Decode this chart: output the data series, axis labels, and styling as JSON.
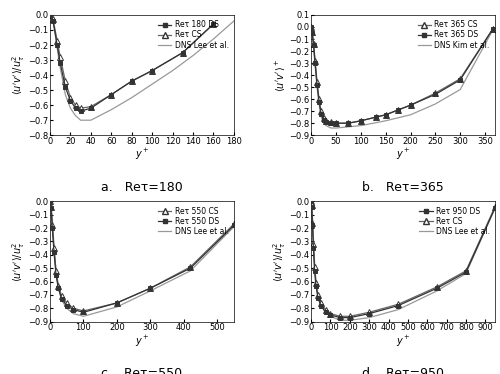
{
  "panels": [
    {
      "label": "a.",
      "Re": "180",
      "legend_order": [
        "DS",
        "CS",
        "DNS"
      ],
      "legend": [
        "Reτ 180 DS",
        "Reτ CS",
        "DNS Lee et al."
      ],
      "xlim": [
        0,
        180
      ],
      "ylim": [
        -0.8,
        0.0
      ],
      "yticks": [
        0,
        -0.1,
        -0.2,
        -0.3,
        -0.4,
        -0.5,
        -0.6,
        -0.7,
        -0.8
      ],
      "xticks": [
        0,
        20,
        40,
        60,
        80,
        100,
        120,
        140,
        160,
        180
      ],
      "ylabel_type": "uv_norm",
      "ds_x": [
        0,
        3,
        7,
        10,
        15,
        20,
        25,
        30,
        40,
        60,
        80,
        100,
        130,
        160
      ],
      "ds_y": [
        0.0,
        -0.04,
        -0.2,
        -0.32,
        -0.48,
        -0.57,
        -0.62,
        -0.64,
        -0.62,
        -0.53,
        -0.44,
        -0.37,
        -0.25,
        -0.06
      ],
      "cs_x": [
        0,
        3,
        7,
        10,
        15,
        20,
        25,
        30,
        40,
        60,
        80,
        100,
        130,
        160
      ],
      "cs_y": [
        0.0,
        -0.03,
        -0.17,
        -0.28,
        -0.44,
        -0.55,
        -0.6,
        -0.62,
        -0.61,
        -0.53,
        -0.44,
        -0.37,
        -0.25,
        -0.06
      ],
      "dns_x": [
        0,
        1,
        3,
        5,
        7,
        10,
        15,
        20,
        25,
        30,
        40,
        60,
        80,
        100,
        120,
        140,
        160,
        180
      ],
      "dns_y": [
        0.0,
        -0.01,
        -0.05,
        -0.12,
        -0.22,
        -0.35,
        -0.53,
        -0.62,
        -0.67,
        -0.7,
        -0.7,
        -0.63,
        -0.55,
        -0.46,
        -0.37,
        -0.27,
        -0.16,
        -0.04
      ]
    },
    {
      "label": "b.",
      "Re": "365",
      "legend_order": [
        "CS",
        "DS",
        "DNS"
      ],
      "legend": [
        "Reτ 365 CS",
        "Reτ 365 DS",
        "DNS Kim et al."
      ],
      "xlim": [
        0,
        370
      ],
      "ylim": [
        -0.9,
        0.1
      ],
      "yticks": [
        0.1,
        0,
        -0.1,
        -0.2,
        -0.3,
        -0.4,
        -0.5,
        -0.6,
        -0.7,
        -0.8,
        -0.9
      ],
      "xticks": [
        0,
        50,
        100,
        150,
        200,
        250,
        300,
        350
      ],
      "ylabel_type": "uv_plus",
      "ds_x": [
        0,
        2,
        5,
        8,
        12,
        16,
        20,
        25,
        30,
        40,
        50,
        75,
        100,
        130,
        150,
        175,
        200,
        250,
        300,
        365
      ],
      "ds_y": [
        0.0,
        -0.05,
        -0.15,
        -0.3,
        -0.48,
        -0.62,
        -0.72,
        -0.77,
        -0.79,
        -0.8,
        -0.8,
        -0.8,
        -0.78,
        -0.75,
        -0.73,
        -0.69,
        -0.65,
        -0.56,
        -0.44,
        -0.02
      ],
      "cs_x": [
        0,
        2,
        5,
        8,
        12,
        16,
        20,
        25,
        30,
        40,
        50,
        75,
        100,
        130,
        150,
        175,
        200,
        250,
        300,
        365
      ],
      "cs_y": [
        0.0,
        -0.04,
        -0.14,
        -0.28,
        -0.46,
        -0.6,
        -0.7,
        -0.76,
        -0.78,
        -0.79,
        -0.8,
        -0.8,
        -0.78,
        -0.75,
        -0.73,
        -0.69,
        -0.65,
        -0.55,
        -0.43,
        -0.02
      ],
      "dns_x": [
        0,
        1,
        3,
        5,
        8,
        12,
        16,
        20,
        25,
        30,
        40,
        50,
        75,
        100,
        150,
        200,
        250,
        300,
        365
      ],
      "dns_y": [
        0.0,
        -0.01,
        -0.07,
        -0.17,
        -0.32,
        -0.5,
        -0.64,
        -0.74,
        -0.8,
        -0.82,
        -0.84,
        -0.84,
        -0.83,
        -0.82,
        -0.78,
        -0.73,
        -0.64,
        -0.52,
        -0.03
      ]
    },
    {
      "label": "c.",
      "Re": "550",
      "legend_order": [
        "CS",
        "DS",
        "DNS"
      ],
      "legend": [
        "Reτ 550 CS",
        "Reτ 550 DS",
        "DNS Lee et al."
      ],
      "xlim": [
        0,
        550
      ],
      "ylim": [
        -0.9,
        0.0
      ],
      "yticks": [
        0,
        -0.1,
        -0.2,
        -0.3,
        -0.4,
        -0.5,
        -0.6,
        -0.7,
        -0.8,
        -0.9
      ],
      "xticks": [
        0,
        100,
        200,
        300,
        400,
        500
      ],
      "ylabel_type": "uv_norm",
      "ds_x": [
        0,
        3,
        7,
        12,
        18,
        25,
        35,
        50,
        70,
        100,
        200,
        300,
        420,
        550
      ],
      "ds_y": [
        0.0,
        -0.05,
        -0.2,
        -0.38,
        -0.55,
        -0.65,
        -0.73,
        -0.78,
        -0.81,
        -0.83,
        -0.76,
        -0.65,
        -0.5,
        -0.18
      ],
      "cs_x": [
        0,
        3,
        7,
        12,
        18,
        25,
        35,
        50,
        70,
        100,
        200,
        300,
        420,
        550
      ],
      "cs_y": [
        0.0,
        -0.04,
        -0.18,
        -0.35,
        -0.52,
        -0.63,
        -0.71,
        -0.76,
        -0.8,
        -0.82,
        -0.76,
        -0.65,
        -0.49,
        -0.17
      ],
      "dns_x": [
        0,
        2,
        5,
        8,
        12,
        18,
        25,
        35,
        50,
        70,
        100,
        200,
        300,
        420,
        550
      ],
      "dns_y": [
        0.0,
        -0.01,
        -0.07,
        -0.17,
        -0.34,
        -0.52,
        -0.65,
        -0.74,
        -0.8,
        -0.84,
        -0.86,
        -0.79,
        -0.67,
        -0.52,
        -0.19
      ]
    },
    {
      "label": "d.",
      "Re": "950",
      "legend_order": [
        "DS",
        "CS",
        "DNS"
      ],
      "legend": [
        "Reτ 950 DS",
        "Reτ CS",
        "DNS Lee et al."
      ],
      "xlim": [
        0,
        950
      ],
      "ylim": [
        -0.9,
        0.0
      ],
      "yticks": [
        0,
        -0.1,
        -0.2,
        -0.3,
        -0.4,
        -0.5,
        -0.6,
        -0.7,
        -0.8,
        -0.9
      ],
      "xticks": [
        0,
        100,
        200,
        300,
        400,
        500,
        600,
        700,
        800,
        900
      ],
      "ylabel_type": "uv_norm",
      "ds_x": [
        0,
        3,
        7,
        12,
        18,
        25,
        35,
        50,
        75,
        100,
        150,
        200,
        300,
        450,
        650,
        800,
        950
      ],
      "ds_y": [
        0.0,
        -0.04,
        -0.18,
        -0.35,
        -0.52,
        -0.63,
        -0.72,
        -0.78,
        -0.83,
        -0.85,
        -0.87,
        -0.87,
        -0.84,
        -0.78,
        -0.65,
        -0.53,
        -0.05
      ],
      "cs_x": [
        0,
        3,
        7,
        12,
        18,
        25,
        35,
        50,
        75,
        100,
        150,
        200,
        300,
        450,
        650,
        800,
        950
      ],
      "cs_y": [
        0.0,
        -0.03,
        -0.16,
        -0.32,
        -0.49,
        -0.61,
        -0.7,
        -0.76,
        -0.81,
        -0.84,
        -0.86,
        -0.86,
        -0.83,
        -0.77,
        -0.64,
        -0.52,
        -0.04
      ],
      "dns_x": [
        0,
        2,
        5,
        8,
        12,
        18,
        25,
        35,
        50,
        75,
        100,
        150,
        200,
        300,
        450,
        650,
        800,
        950
      ],
      "dns_y": [
        0.0,
        -0.01,
        -0.06,
        -0.14,
        -0.28,
        -0.46,
        -0.6,
        -0.7,
        -0.77,
        -0.83,
        -0.86,
        -0.89,
        -0.89,
        -0.87,
        -0.81,
        -0.67,
        -0.54,
        -0.05
      ]
    }
  ],
  "ds_marker": "s",
  "cs_marker": "^",
  "ds_color": "#333333",
  "cs_color": "#666666",
  "dns_color": "#999999",
  "ds_markersize": 3.5,
  "cs_markersize": 4.0,
  "fontsize_label": 7,
  "fontsize_tick": 6,
  "fontsize_legend": 5.5,
  "fontsize_sublabel": 9
}
